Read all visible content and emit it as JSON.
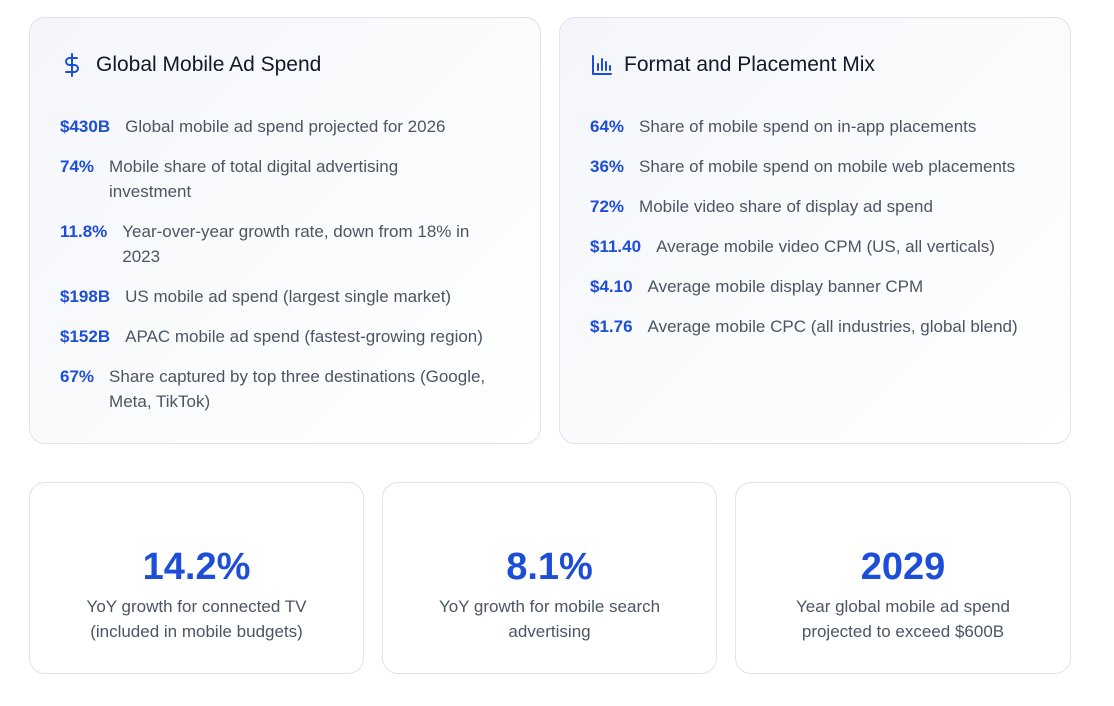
{
  "left_card": {
    "title": "Global Mobile Ad Spend",
    "icon": "dollar-icon",
    "items": [
      {
        "value": "$430B",
        "desc": "Global mobile ad spend projected for 2026"
      },
      {
        "value": "74%",
        "desc": "Mobile share of total digital advertising investment"
      },
      {
        "value": "11.8%",
        "desc": "Year-over-year growth rate, down from 18% in 2023"
      },
      {
        "value": "$198B",
        "desc": "US mobile ad spend (largest single market)"
      },
      {
        "value": "$152B",
        "desc": "APAC mobile ad spend (fastest-growing region)"
      },
      {
        "value": "67%",
        "desc": "Share captured by top three destinations (Google, Meta, TikTok)"
      }
    ]
  },
  "right_card": {
    "title": "Format and Placement Mix",
    "icon": "bar-chart-icon",
    "items": [
      {
        "value": "64%",
        "desc": "Share of mobile spend on in-app placements"
      },
      {
        "value": "36%",
        "desc": "Share of mobile spend on mobile web placements"
      },
      {
        "value": "72%",
        "desc": "Mobile video share of display ad spend"
      },
      {
        "value": "$11.40",
        "desc": "Average mobile video CPM (US, all verticals)"
      },
      {
        "value": "$4.10",
        "desc": "Average mobile display banner CPM"
      },
      {
        "value": "$1.76",
        "desc": "Average mobile CPC (all industries, global blend)"
      }
    ]
  },
  "kpis": [
    {
      "value": "14.2%",
      "label": "YoY growth for connected TV (included in mobile budgets)"
    },
    {
      "value": "8.1%",
      "label": "YoY growth for mobile search advertising"
    },
    {
      "value": "2029",
      "label": "Year global mobile ad spend projected to exceed $600B"
    }
  ],
  "colors": {
    "accent": "#1d4ed8",
    "heading": "#111827",
    "body": "#4b5563",
    "border": "#dfe3ea"
  }
}
